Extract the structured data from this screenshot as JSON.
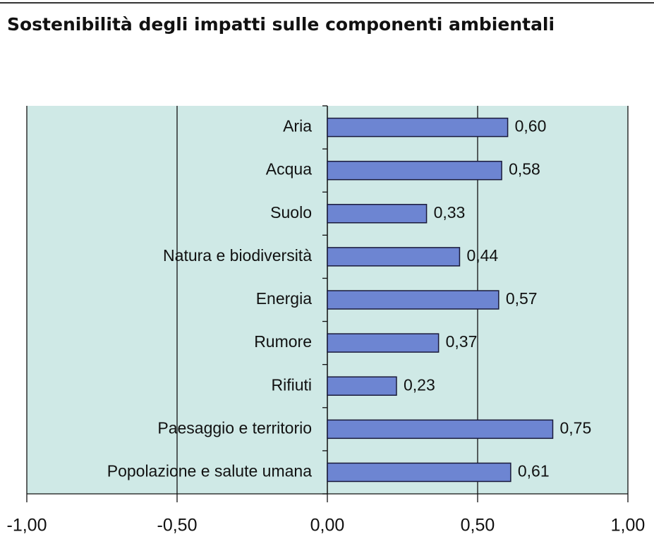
{
  "chart_data": {
    "type": "bar",
    "orientation": "horizontal",
    "title": "Sostenibilità degli impatti sulle componenti ambientali",
    "categories": [
      "Aria",
      "Acqua",
      "Suolo",
      "Natura e biodiversità",
      "Energia",
      "Rumore",
      "Rifiuti",
      "Paesaggio e territorio",
      "Popolazione e salute umana"
    ],
    "values": [
      0.6,
      0.58,
      0.33,
      0.44,
      0.57,
      0.37,
      0.23,
      0.75,
      0.61
    ],
    "value_labels": [
      "0,60",
      "0,58",
      "0,33",
      "0,44",
      "0,57",
      "0,37",
      "0,23",
      "0,75",
      "0,61"
    ],
    "color": "#6d85d2",
    "xlim": [
      -1,
      1
    ],
    "xticks": [
      {
        "value": -1,
        "label": "-1,00"
      },
      {
        "value": -0.5,
        "label": "-0,50"
      },
      {
        "value": 0,
        "label": "0,00"
      },
      {
        "value": 0.5,
        "label": "0,50"
      },
      {
        "value": 1,
        "label": "1,00"
      }
    ],
    "grid": true
  }
}
